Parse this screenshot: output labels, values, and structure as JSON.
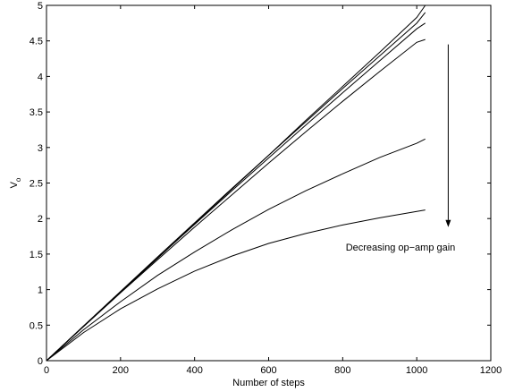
{
  "chart_data": {
    "type": "line",
    "title": "",
    "xlabel": "Number of steps",
    "ylabel": "V",
    "ylabel_subscript": "o",
    "xlim": [
      0,
      1200
    ],
    "ylim": [
      0,
      5
    ],
    "xticks": [
      0,
      200,
      400,
      600,
      800,
      1000,
      1200
    ],
    "xtick_labels": [
      "0",
      "200",
      "400",
      "600",
      "800",
      "1000",
      "1200"
    ],
    "yticks": [
      0,
      0.5,
      1,
      1.5,
      2,
      2.5,
      3,
      3.5,
      4,
      4.5,
      5
    ],
    "ytick_labels": [
      "0",
      "0.5",
      "1",
      "1.5",
      "2",
      "2.5",
      "3",
      "3.5",
      "4",
      "4.5",
      "5"
    ],
    "grid": false,
    "line_color": "#000000",
    "series": [
      {
        "x": [
          0,
          100,
          200,
          300,
          400,
          500,
          600,
          700,
          800,
          900,
          1000,
          1023
        ],
        "values": [
          0,
          0.48,
          0.96,
          1.44,
          1.93,
          2.41,
          2.89,
          3.38,
          3.86,
          4.34,
          4.83,
          5.0
        ]
      },
      {
        "x": [
          0,
          100,
          200,
          300,
          400,
          500,
          600,
          700,
          800,
          900,
          1000,
          1023
        ],
        "values": [
          0,
          0.488,
          0.975,
          1.46,
          1.94,
          2.42,
          2.89,
          3.36,
          3.83,
          4.29,
          4.75,
          4.9
        ]
      },
      {
        "x": [
          0,
          100,
          200,
          300,
          400,
          500,
          600,
          700,
          800,
          900,
          1000,
          1023
        ],
        "values": [
          0,
          0.486,
          0.968,
          1.445,
          1.918,
          2.388,
          2.853,
          3.314,
          3.77,
          4.22,
          4.67,
          4.75
        ]
      },
      {
        "x": [
          0,
          100,
          200,
          300,
          400,
          500,
          600,
          700,
          800,
          900,
          1000,
          1023
        ],
        "values": [
          0,
          0.48,
          0.955,
          1.42,
          1.88,
          2.33,
          2.78,
          3.22,
          3.65,
          4.07,
          4.48,
          4.52
        ]
      },
      {
        "x": [
          0,
          100,
          200,
          300,
          400,
          500,
          600,
          700,
          800,
          900,
          1000,
          1023
        ],
        "values": [
          0,
          0.435,
          0.83,
          1.2,
          1.53,
          1.84,
          2.13,
          2.39,
          2.63,
          2.86,
          3.06,
          3.12
        ]
      },
      {
        "x": [
          0,
          100,
          200,
          300,
          400,
          500,
          600,
          700,
          800,
          900,
          1000,
          1023
        ],
        "values": [
          0,
          0.395,
          0.73,
          1.01,
          1.26,
          1.47,
          1.65,
          1.79,
          1.91,
          2.01,
          2.1,
          2.12
        ]
      }
    ],
    "annotation": {
      "text": "Decreasing op−amp gain",
      "arrow_x": 1085,
      "arrow_y_start": 4.45,
      "arrow_y_end": 1.88
    }
  }
}
